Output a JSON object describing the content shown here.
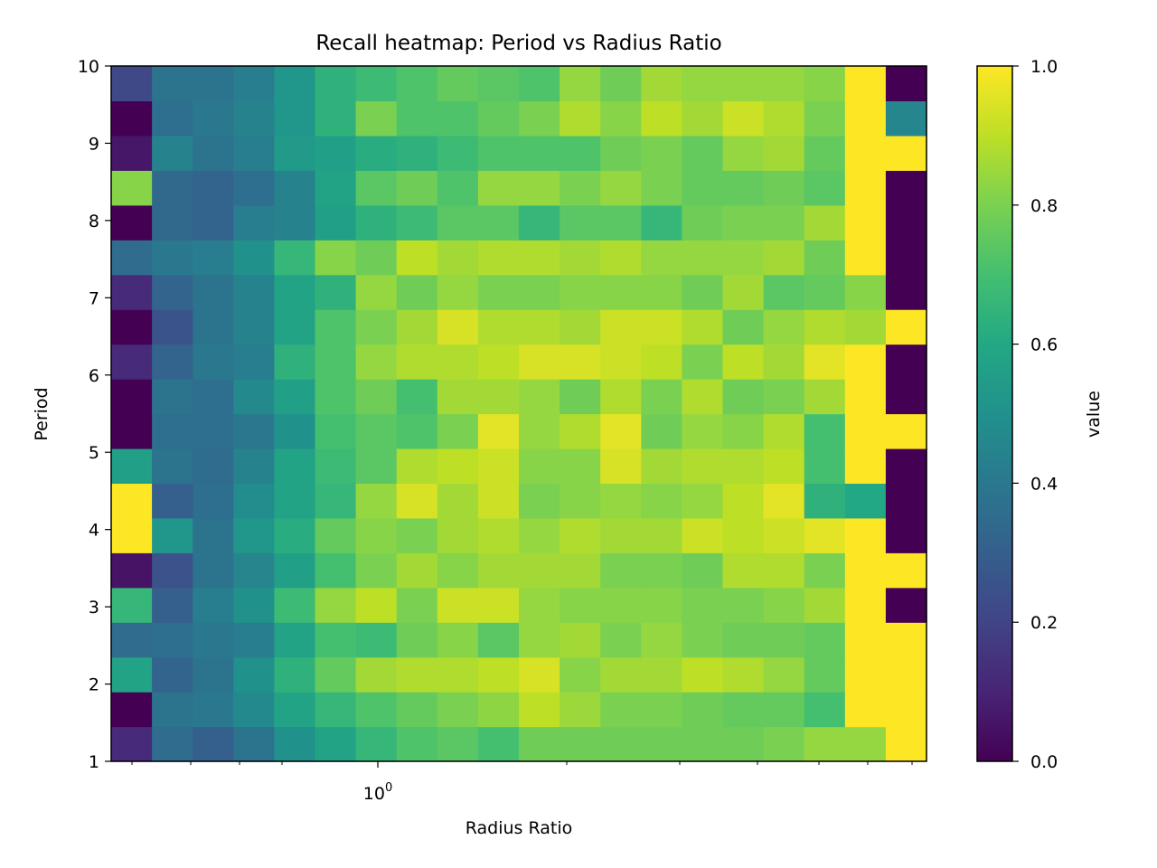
{
  "chart_data": {
    "type": "heatmap",
    "title": "Recall heatmap: Period vs Radius Ratio",
    "xlabel": "Radius Ratio",
    "ylabel": "Period",
    "x_scale": "log",
    "x_tick_label": "10^0",
    "x_tick_label_base": "10",
    "x_tick_label_exp": "0",
    "y_ticks": [
      "1",
      "2",
      "3",
      "4",
      "5",
      "6",
      "7",
      "8",
      "9",
      "10"
    ],
    "ylim": [
      1,
      10
    ],
    "colorbar": {
      "label": "value",
      "ticks": [
        "0.0",
        "0.2",
        "0.4",
        "0.6",
        "0.8",
        "1.0"
      ],
      "range": [
        0,
        1
      ],
      "colormap": "viridis"
    },
    "grid": false,
    "rows_bottom_to_top": [
      [
        0.12,
        0.35,
        0.3,
        0.38,
        0.5,
        0.58,
        0.66,
        0.72,
        0.74,
        0.7,
        0.78,
        0.78,
        0.78,
        0.78,
        0.78,
        0.78,
        0.8,
        0.84,
        0.84,
        1.0
      ],
      [
        0.0,
        0.38,
        0.4,
        0.47,
        0.58,
        0.66,
        0.72,
        0.76,
        0.8,
        0.83,
        0.9,
        0.85,
        0.8,
        0.8,
        0.78,
        0.76,
        0.76,
        0.7,
        1.0,
        1.0
      ],
      [
        0.58,
        0.32,
        0.38,
        0.5,
        0.64,
        0.76,
        0.86,
        0.88,
        0.88,
        0.9,
        0.94,
        0.82,
        0.86,
        0.86,
        0.9,
        0.88,
        0.84,
        0.76,
        1.0,
        1.0
      ],
      [
        0.35,
        0.36,
        0.4,
        0.42,
        0.58,
        0.7,
        0.68,
        0.78,
        0.82,
        0.74,
        0.84,
        0.86,
        0.8,
        0.84,
        0.8,
        0.78,
        0.78,
        0.76,
        1.0,
        1.0
      ],
      [
        0.66,
        0.3,
        0.42,
        0.5,
        0.68,
        0.84,
        0.9,
        0.8,
        0.92,
        0.92,
        0.84,
        0.82,
        0.82,
        0.82,
        0.8,
        0.8,
        0.82,
        0.86,
        1.0,
        0.0
      ],
      [
        0.05,
        0.25,
        0.38,
        0.45,
        0.56,
        0.7,
        0.8,
        0.86,
        0.82,
        0.86,
        0.86,
        0.86,
        0.8,
        0.8,
        0.78,
        0.88,
        0.88,
        0.8,
        1.0,
        1.0
      ],
      [
        1.0,
        0.52,
        0.38,
        0.52,
        0.62,
        0.76,
        0.82,
        0.8,
        0.86,
        0.88,
        0.84,
        0.88,
        0.86,
        0.86,
        0.92,
        0.9,
        0.92,
        0.96,
        1.0,
        0.0
      ],
      [
        1.0,
        0.3,
        0.36,
        0.48,
        0.58,
        0.66,
        0.84,
        0.94,
        0.86,
        0.92,
        0.8,
        0.82,
        0.84,
        0.82,
        0.84,
        0.9,
        0.96,
        0.64,
        0.6,
        0.0
      ],
      [
        0.56,
        0.38,
        0.35,
        0.44,
        0.58,
        0.68,
        0.74,
        0.88,
        0.9,
        0.92,
        0.82,
        0.82,
        0.94,
        0.86,
        0.88,
        0.88,
        0.9,
        0.7,
        1.0,
        0.0
      ],
      [
        0.0,
        0.36,
        0.36,
        0.4,
        0.5,
        0.7,
        0.74,
        0.72,
        0.8,
        0.96,
        0.84,
        0.88,
        0.96,
        0.78,
        0.84,
        0.82,
        0.88,
        0.7,
        1.0,
        1.0
      ],
      [
        0.0,
        0.38,
        0.36,
        0.47,
        0.56,
        0.72,
        0.78,
        0.7,
        0.86,
        0.86,
        0.84,
        0.78,
        0.88,
        0.8,
        0.88,
        0.78,
        0.8,
        0.86,
        1.0,
        0.0
      ],
      [
        0.12,
        0.32,
        0.4,
        0.42,
        0.64,
        0.72,
        0.84,
        0.88,
        0.88,
        0.9,
        0.94,
        0.94,
        0.92,
        0.9,
        0.8,
        0.9,
        0.86,
        0.96,
        1.0,
        0.0
      ],
      [
        0.0,
        0.26,
        0.38,
        0.44,
        0.58,
        0.72,
        0.8,
        0.86,
        0.94,
        0.88,
        0.88,
        0.86,
        0.92,
        0.92,
        0.88,
        0.78,
        0.84,
        0.88,
        0.86,
        1.0
      ],
      [
        0.12,
        0.32,
        0.38,
        0.44,
        0.58,
        0.64,
        0.84,
        0.78,
        0.84,
        0.8,
        0.8,
        0.82,
        0.82,
        0.82,
        0.78,
        0.86,
        0.74,
        0.76,
        0.82,
        0.0
      ],
      [
        0.35,
        0.4,
        0.42,
        0.5,
        0.66,
        0.82,
        0.78,
        0.9,
        0.86,
        0.88,
        0.88,
        0.86,
        0.88,
        0.84,
        0.84,
        0.84,
        0.86,
        0.78,
        1.0,
        0.0
      ],
      [
        0.0,
        0.34,
        0.32,
        0.42,
        0.44,
        0.56,
        0.64,
        0.68,
        0.74,
        0.74,
        0.66,
        0.74,
        0.74,
        0.66,
        0.78,
        0.8,
        0.8,
        0.86,
        1.0,
        0.0
      ],
      [
        0.82,
        0.34,
        0.32,
        0.36,
        0.44,
        0.58,
        0.74,
        0.78,
        0.72,
        0.84,
        0.84,
        0.8,
        0.84,
        0.8,
        0.76,
        0.76,
        0.78,
        0.74,
        1.0,
        0.0
      ],
      [
        0.06,
        0.44,
        0.38,
        0.42,
        0.54,
        0.56,
        0.62,
        0.64,
        0.68,
        0.72,
        0.72,
        0.72,
        0.78,
        0.8,
        0.76,
        0.84,
        0.86,
        0.76,
        1.0,
        1.0
      ],
      [
        0.0,
        0.36,
        0.4,
        0.44,
        0.52,
        0.64,
        0.8,
        0.72,
        0.72,
        0.76,
        0.8,
        0.88,
        0.82,
        0.9,
        0.86,
        0.92,
        0.88,
        0.8,
        1.0,
        0.46
      ],
      [
        0.22,
        0.38,
        0.38,
        0.42,
        0.52,
        0.64,
        0.68,
        0.72,
        0.76,
        0.74,
        0.72,
        0.84,
        0.78,
        0.86,
        0.84,
        0.84,
        0.84,
        0.82,
        1.0,
        0.0
      ]
    ]
  }
}
